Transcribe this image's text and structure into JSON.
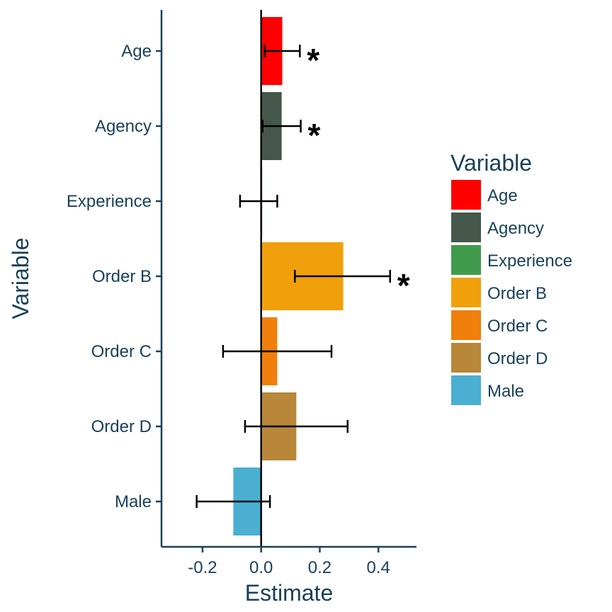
{
  "chart_data": {
    "type": "bar",
    "orientation": "horizontal",
    "xlabel": "Estimate",
    "ylabel": "Variable",
    "xlim": [
      -0.34,
      0.53
    ],
    "xticks": [
      "-0.2",
      "0.0",
      "0.2",
      "0.4"
    ],
    "xtick_values": [
      -0.2,
      0.0,
      0.2,
      0.4
    ],
    "categories": [
      "Age",
      "Agency",
      "Experience",
      "Order B",
      "Order C",
      "Order D",
      "Male"
    ],
    "values": [
      0.072,
      0.07,
      0.002,
      0.28,
      0.055,
      0.12,
      -0.095
    ],
    "ci_low": [
      0.012,
      0.005,
      -0.072,
      0.115,
      -0.13,
      -0.055,
      -0.22
    ],
    "ci_high": [
      0.132,
      0.135,
      0.055,
      0.44,
      0.24,
      0.295,
      0.03
    ],
    "significance": [
      "*",
      "*",
      "",
      "*",
      "",
      "",
      ""
    ],
    "colors": [
      "#ff0000",
      "#44574a",
      "#3f9b4b",
      "#f0a00a",
      "#f07f0c",
      "#b8873a",
      "#4aafd1"
    ],
    "legend": {
      "title": "Variable",
      "position": "right",
      "entries": [
        "Age",
        "Agency",
        "Experience",
        "Order B",
        "Order C",
        "Order D",
        "Male"
      ]
    },
    "grid": false
  }
}
